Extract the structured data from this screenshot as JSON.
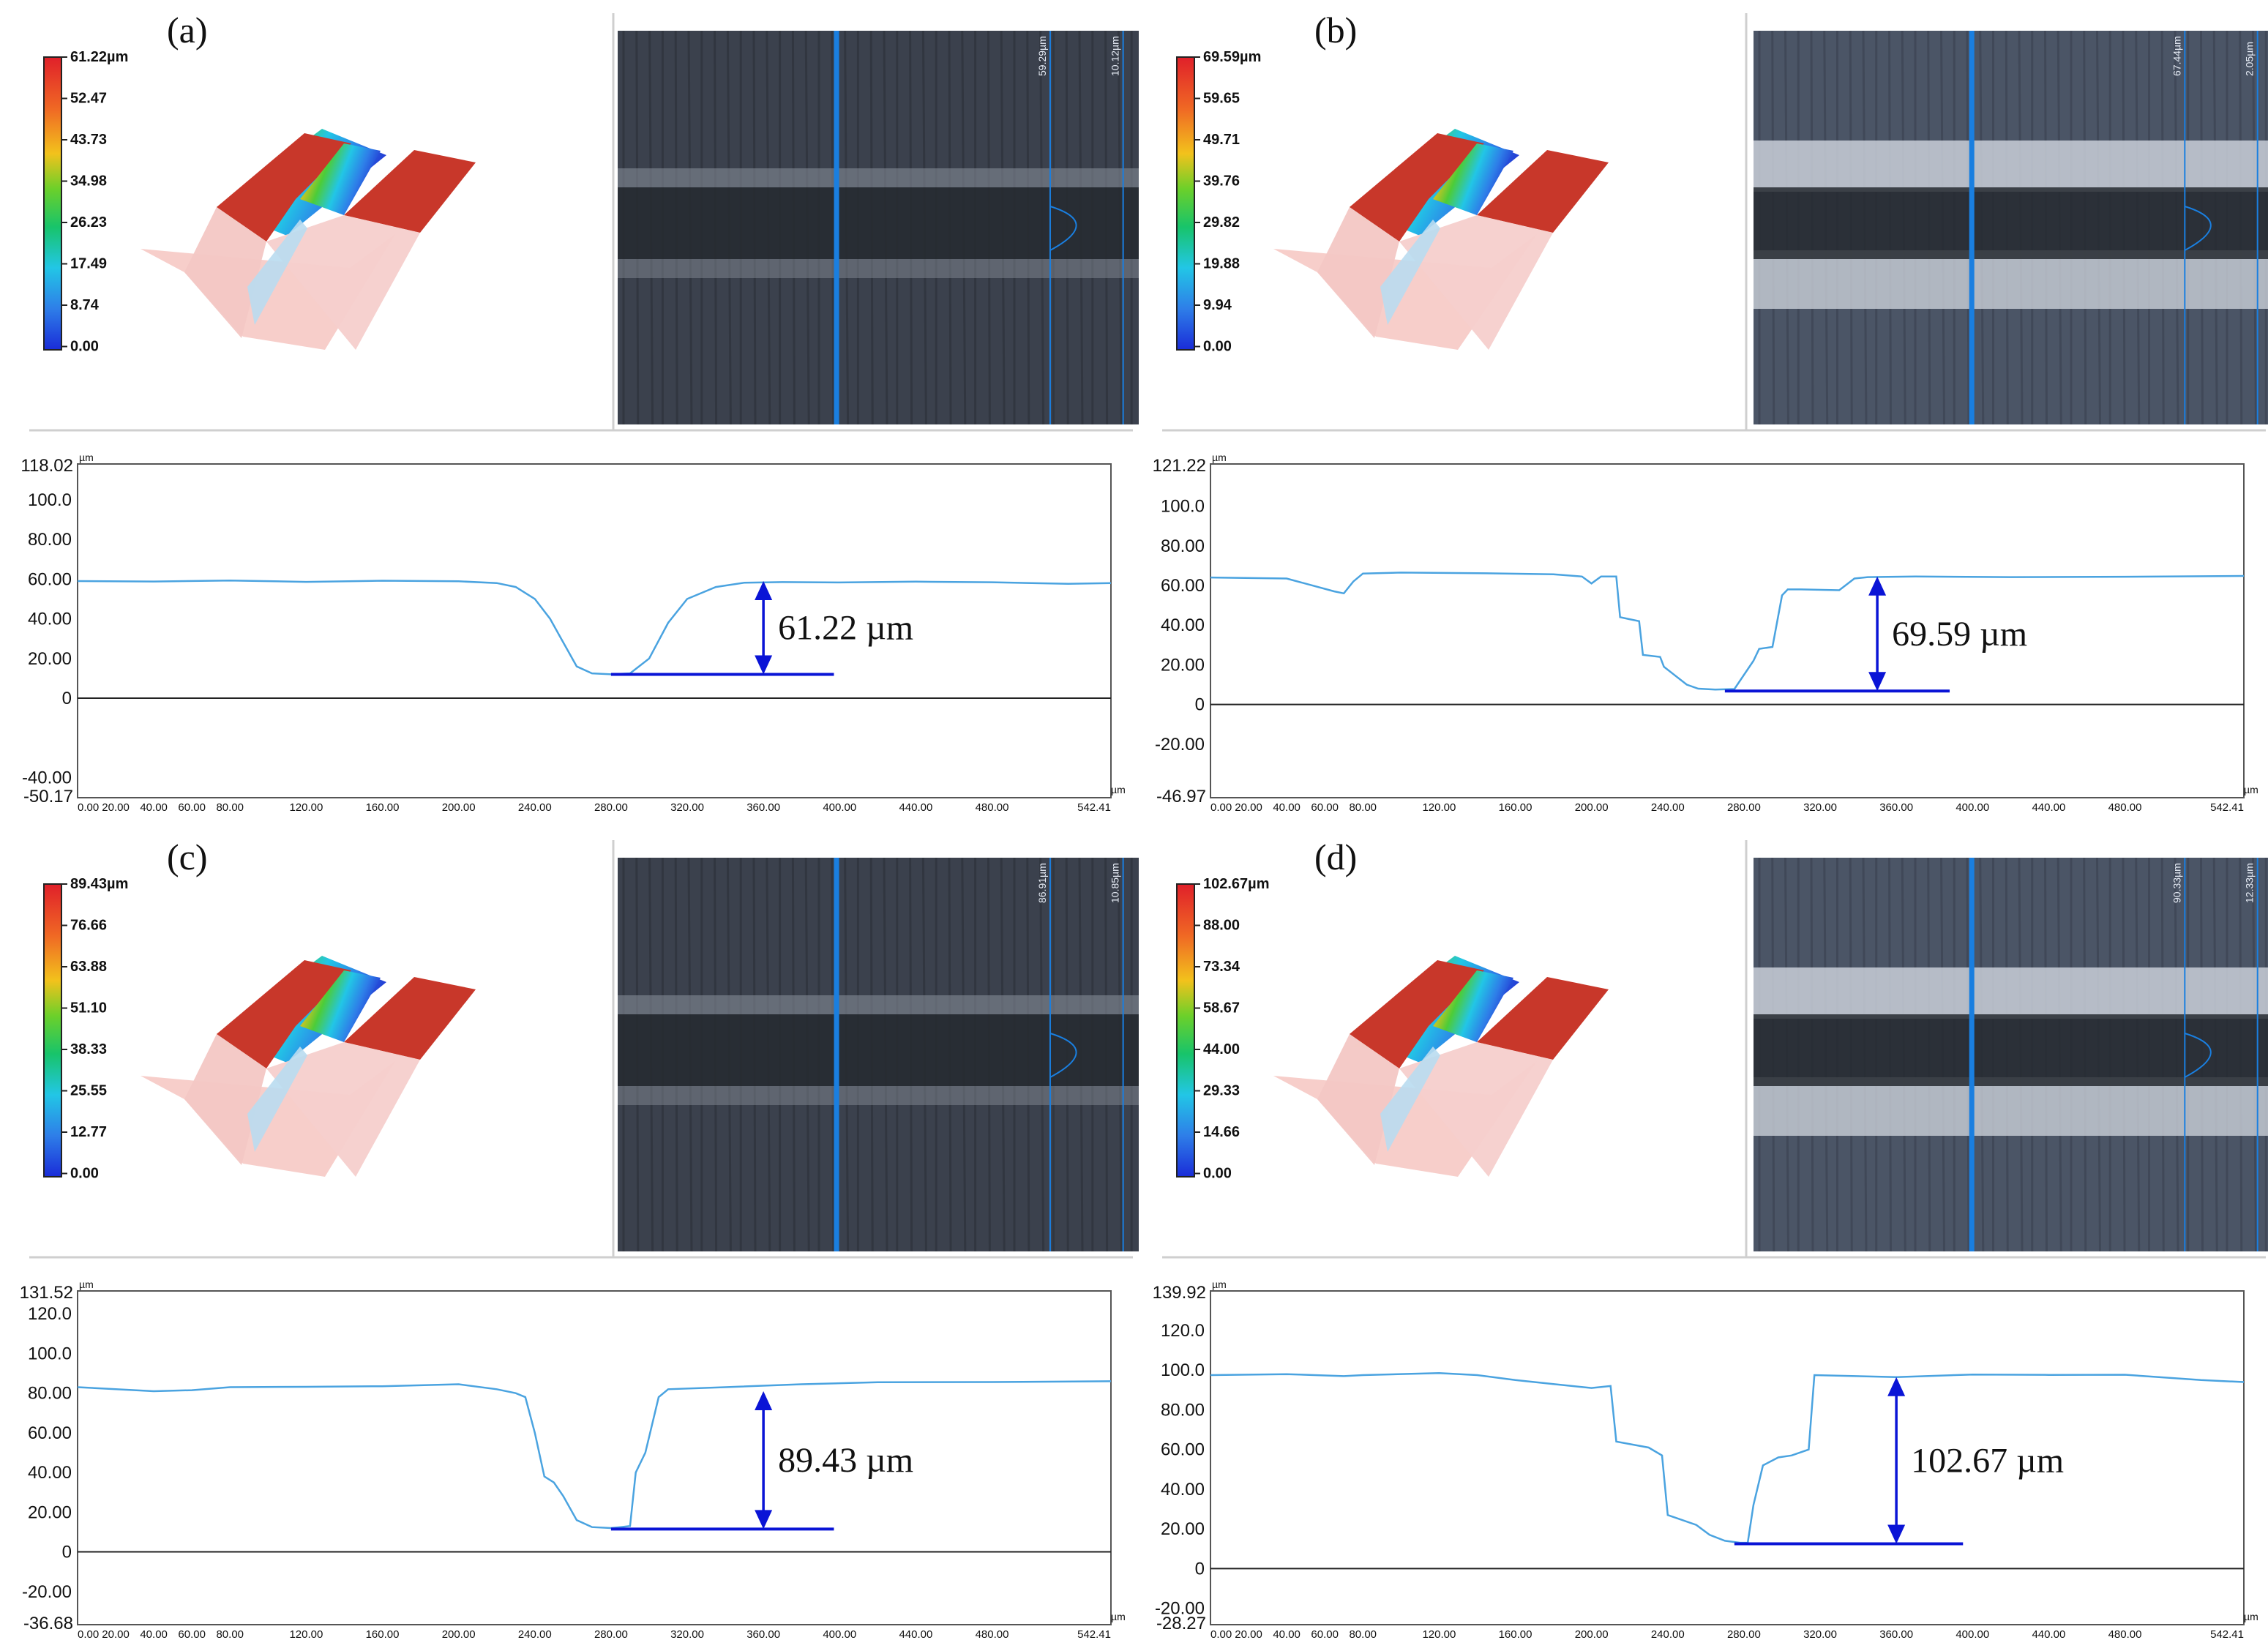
{
  "figure": {
    "unit": "µm",
    "colors": {
      "profile": "#4aa3e0",
      "annotation": "#0a14d6",
      "scan_line": "#1a7fe0",
      "frame": "#555555",
      "zero_line": "#222222",
      "surface_red": "#c8372a",
      "image_dark": "#3a3f4a",
      "image_bright": "#c9cfd8"
    },
    "panels": [
      {
        "label": "(a)",
        "scale": {
          "labels": [
            "61.22µm",
            "52.47",
            "43.73",
            "34.98",
            "26.23",
            "17.49",
            "8.74",
            "0.00"
          ]
        },
        "micrograph": {
          "cursor_value": "59.29µm",
          "ref_value": "10.12µm",
          "surface": "dark"
        },
        "chart_data": {
          "type": "line",
          "ylim": [
            -50.17,
            118.02
          ],
          "xlim": [
            0,
            542.41
          ],
          "y_top_label": "118.02",
          "y_bottom_label": "-50.17",
          "yticks": [
            100.0,
            80.0,
            60.0,
            40.0,
            20.0,
            0,
            -40.0
          ],
          "ytick_labels": [
            "100.0",
            "80.00",
            "60.00",
            "40.00",
            "20.00",
            "0",
            "-40.00"
          ],
          "xticks": [
            0,
            20,
            40,
            60,
            80,
            120,
            160,
            200,
            240,
            280,
            320,
            360,
            400,
            440,
            480,
            542.41
          ],
          "xtick_labels": [
            "0.00",
            "20.00",
            "40.00",
            "60.00",
            "80.00",
            "120.00",
            "160.00",
            "200.00",
            "240.00",
            "280.00",
            "320.00",
            "360.00",
            "400.00",
            "440.00",
            "480.00",
            "542.41"
          ],
          "yunit": "µm",
          "xunit": "µm",
          "series": [
            {
              "name": "profile",
              "x": [
                0,
                40,
                80,
                120,
                160,
                200,
                220,
                230,
                240,
                248,
                255,
                262,
                270,
                280,
                290,
                300,
                310,
                320,
                335,
                350,
                370,
                400,
                440,
                480,
                520,
                542.41
              ],
              "y": [
                59,
                58.8,
                59.3,
                58.6,
                59.2,
                58.9,
                58,
                56,
                50,
                40,
                28,
                16,
                12.5,
                12,
                12.5,
                20,
                38,
                50,
                56,
                58.2,
                58.5,
                58.3,
                58.7,
                58.4,
                57.6,
                58
              ]
            }
          ],
          "annotation": {
            "text": "61.22 µm",
            "baseline_y": 12,
            "top_y": 59,
            "arrow_x": 360,
            "line_x0": 280,
            "line_x1": 397
          }
        }
      },
      {
        "label": "(b)",
        "scale": {
          "labels": [
            "69.59µm",
            "59.65",
            "49.71",
            "39.76",
            "29.82",
            "19.88",
            "9.94",
            "0.00"
          ]
        },
        "micrograph": {
          "cursor_value": "67.44µm",
          "ref_value": "2.05µm",
          "surface": "bright"
        },
        "chart_data": {
          "type": "line",
          "ylim": [
            -46.97,
            121.22
          ],
          "xlim": [
            0,
            542.41
          ],
          "y_top_label": "121.22",
          "y_bottom_label": "-46.97",
          "yticks": [
            100.0,
            80.0,
            60.0,
            40.0,
            20.0,
            0,
            -20.0
          ],
          "ytick_labels": [
            "100.0",
            "80.00",
            "60.00",
            "40.00",
            "20.00",
            "0",
            "-20.00"
          ],
          "xticks": [
            0,
            20,
            40,
            60,
            80,
            120,
            160,
            200,
            240,
            280,
            320,
            360,
            400,
            440,
            480,
            542.41
          ],
          "xtick_labels": [
            "0.00",
            "20.00",
            "40.00",
            "60.00",
            "80.00",
            "120.00",
            "160.00",
            "200.00",
            "240.00",
            "280.00",
            "320.00",
            "360.00",
            "400.00",
            "440.00",
            "480.00",
            "542.41"
          ],
          "yunit": "µm",
          "xunit": "µm",
          "series": [
            {
              "name": "profile",
              "x": [
                0,
                40,
                65,
                70,
                75,
                80,
                100,
                140,
                180,
                195,
                200,
                205,
                213,
                215,
                220,
                225,
                227,
                236,
                238,
                250,
                256,
                265,
                275,
                285,
                288,
                295,
                300,
                303,
                310,
                330,
                338,
                345,
                370,
                420,
                480,
                542.41
              ],
              "y": [
                64,
                63.5,
                57,
                56,
                62,
                66,
                66.5,
                66.2,
                65.6,
                64.5,
                61,
                64.5,
                64.5,
                44,
                43,
                42,
                25,
                24,
                19,
                10,
                8,
                7.5,
                7.8,
                22,
                28,
                29,
                55,
                58,
                58,
                57.6,
                63.5,
                64.2,
                64.5,
                64.2,
                64.4,
                64.8
              ]
            }
          ],
          "annotation": {
            "text": "69.59 µm",
            "baseline_y": 6.8,
            "top_y": 64.5,
            "arrow_x": 350,
            "line_x0": 270,
            "line_x1": 388
          }
        }
      },
      {
        "label": "(c)",
        "scale": {
          "labels": [
            "89.43µm",
            "76.66",
            "63.88",
            "51.10",
            "38.33",
            "25.55",
            "12.77",
            "0.00"
          ]
        },
        "micrograph": {
          "cursor_value": "86.91µm",
          "ref_value": "10.85µm",
          "surface": "dark"
        },
        "chart_data": {
          "type": "line",
          "ylim": [
            -36.68,
            131.52
          ],
          "xlim": [
            0,
            542.41
          ],
          "y_top_label": "131.52",
          "y_bottom_label": "-36.68",
          "yticks": [
            120.0,
            100.0,
            80.0,
            60.0,
            40.0,
            20.0,
            0,
            -20.0
          ],
          "ytick_labels": [
            "120.0",
            "100.0",
            "80.00",
            "60.00",
            "40.00",
            "20.00",
            "0",
            "-20.00"
          ],
          "xticks": [
            0,
            20,
            40,
            60,
            80,
            120,
            160,
            200,
            240,
            280,
            320,
            360,
            400,
            440,
            480,
            542.41
          ],
          "xtick_labels": [
            "0.00",
            "20.00",
            "40.00",
            "60.00",
            "80.00",
            "120.00",
            "160.00",
            "200.00",
            "240.00",
            "280.00",
            "320.00",
            "360.00",
            "400.00",
            "440.00",
            "480.00",
            "542.41"
          ],
          "yunit": "µm",
          "xunit": "µm",
          "series": [
            {
              "name": "profile",
              "x": [
                0,
                20,
                40,
                60,
                80,
                120,
                160,
                200,
                220,
                230,
                235,
                240,
                245,
                250,
                255,
                262,
                270,
                280,
                285,
                290,
                293,
                298,
                305,
                310,
                340,
                380,
                420,
                480,
                542.41
              ],
              "y": [
                83,
                82,
                81,
                81.5,
                83,
                83.2,
                83.5,
                84.5,
                82,
                80,
                78,
                60,
                38,
                35,
                28,
                16,
                12.5,
                12,
                12.5,
                13,
                40,
                50,
                78,
                82,
                83,
                84.5,
                85.5,
                85.6,
                86
              ]
            }
          ],
          "annotation": {
            "text": "89.43 µm",
            "baseline_y": 11.5,
            "top_y": 81,
            "arrow_x": 360,
            "line_x0": 280,
            "line_x1": 397
          }
        }
      },
      {
        "label": "(d)",
        "scale": {
          "labels": [
            "102.67µm",
            "88.00",
            "73.34",
            "58.67",
            "44.00",
            "29.33",
            "14.66",
            "0.00"
          ]
        },
        "micrograph": {
          "cursor_value": "90.33µm",
          "ref_value": "12.33µm",
          "surface": "bright"
        },
        "chart_data": {
          "type": "line",
          "ylim": [
            -28.27,
            139.92
          ],
          "xlim": [
            0,
            542.41
          ],
          "y_top_label": "139.92",
          "y_bottom_label": "-28.27",
          "yticks": [
            120.0,
            100.0,
            80.0,
            60.0,
            40.0,
            20.0,
            0,
            -20.0
          ],
          "ytick_labels": [
            "120.0",
            "100.0",
            "80.00",
            "60.00",
            "40.00",
            "20.00",
            "0",
            "-20.00"
          ],
          "xticks": [
            0,
            20,
            40,
            60,
            80,
            120,
            160,
            200,
            240,
            280,
            320,
            360,
            400,
            440,
            480,
            542.41
          ],
          "xtick_labels": [
            "0.00",
            "20.00",
            "40.00",
            "60.00",
            "80.00",
            "120.00",
            "160.00",
            "200.00",
            "240.00",
            "280.00",
            "320.00",
            "360.00",
            "400.00",
            "440.00",
            "480.00",
            "542.41"
          ],
          "yunit": "µm",
          "xunit": "µm",
          "series": [
            {
              "name": "profile",
              "x": [
                0,
                40,
                70,
                80,
                120,
                140,
                160,
                180,
                200,
                210,
                213,
                230,
                237,
                240,
                255,
                262,
                270,
                278,
                282,
                285,
                290,
                298,
                305,
                314,
                317,
                360,
                400,
                440,
                480,
                520,
                542.41
              ],
              "y": [
                97.5,
                98,
                97,
                97.5,
                98.5,
                97.5,
                95,
                93,
                91,
                92,
                64,
                61,
                57,
                27,
                22,
                17,
                14,
                13,
                13,
                32,
                52,
                56,
                57,
                60,
                97.5,
                96.5,
                97.8,
                97.6,
                97.7,
                95,
                94
              ]
            }
          ],
          "annotation": {
            "text": "102.67 µm",
            "baseline_y": 12.5,
            "top_y": 96.5,
            "arrow_x": 360,
            "line_x0": 275,
            "line_x1": 395
          }
        }
      }
    ]
  }
}
